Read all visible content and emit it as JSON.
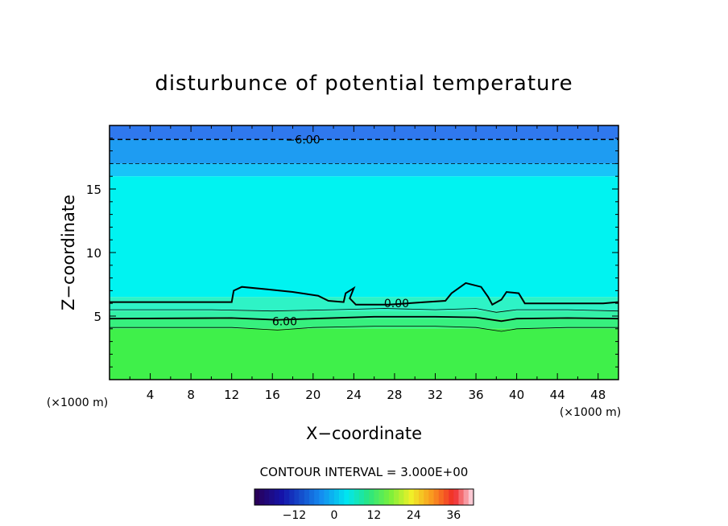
{
  "chart_data": {
    "type": "heatmap",
    "title": "disturbunce of potential temperature",
    "xlabel": "X−coordinate",
    "ylabel": "Z−coordinate",
    "x_unit": "(×1000 m)",
    "y_unit": "(×1000 m)",
    "xlim": [
      0,
      50
    ],
    "ylim": [
      0,
      20
    ],
    "x_ticks": [
      "4",
      "8",
      "12",
      "16",
      "20",
      "24",
      "28",
      "32",
      "36",
      "40",
      "44",
      "48"
    ],
    "y_ticks": [
      "5",
      "10",
      "15"
    ],
    "contour_interval_label": "CONTOUR INTERVAL = 3.000E+00",
    "contour_labels": [
      {
        "text": "−6.00",
        "x": 19,
        "z": 18.9
      },
      {
        "text": "0.00",
        "x": 28.2,
        "z": 6.0
      },
      {
        "text": "6.00",
        "x": 17.2,
        "z": 4.6
      }
    ],
    "layers": [
      {
        "z_top": 20.0,
        "z_bottom": 18.9,
        "value": -12,
        "color": "#2f78ee"
      },
      {
        "z_top": 18.9,
        "z_bottom": 17.0,
        "value": -9,
        "color": "#1e9cf2"
      },
      {
        "z_top": 17.0,
        "z_bottom": 16.0,
        "value": -6,
        "color": "#18c4f8"
      },
      {
        "z_top": 16.0,
        "z_bottom": 6.5,
        "value": -3,
        "color": "#00f3f1"
      },
      {
        "z_top": 6.5,
        "z_bottom": 5.4,
        "value": 0,
        "color": "#2ef3c6"
      },
      {
        "z_top": 5.4,
        "z_bottom": 4.8,
        "value": 3,
        "color": "#34f1a7"
      },
      {
        "z_top": 4.8,
        "z_bottom": 4.0,
        "value": 6,
        "color": "#37f07e"
      },
      {
        "z_top": 4.0,
        "z_bottom": 0.0,
        "value": 9,
        "color": "#3ff04a"
      }
    ],
    "colorbar": {
      "min": -24,
      "max": 42,
      "tick_labels": [
        "−12",
        "0",
        "12",
        "24",
        "36"
      ],
      "tick_values": [
        -12,
        0,
        12,
        24,
        36
      ]
    },
    "grid": false,
    "legend": "colorbar-bottom"
  }
}
